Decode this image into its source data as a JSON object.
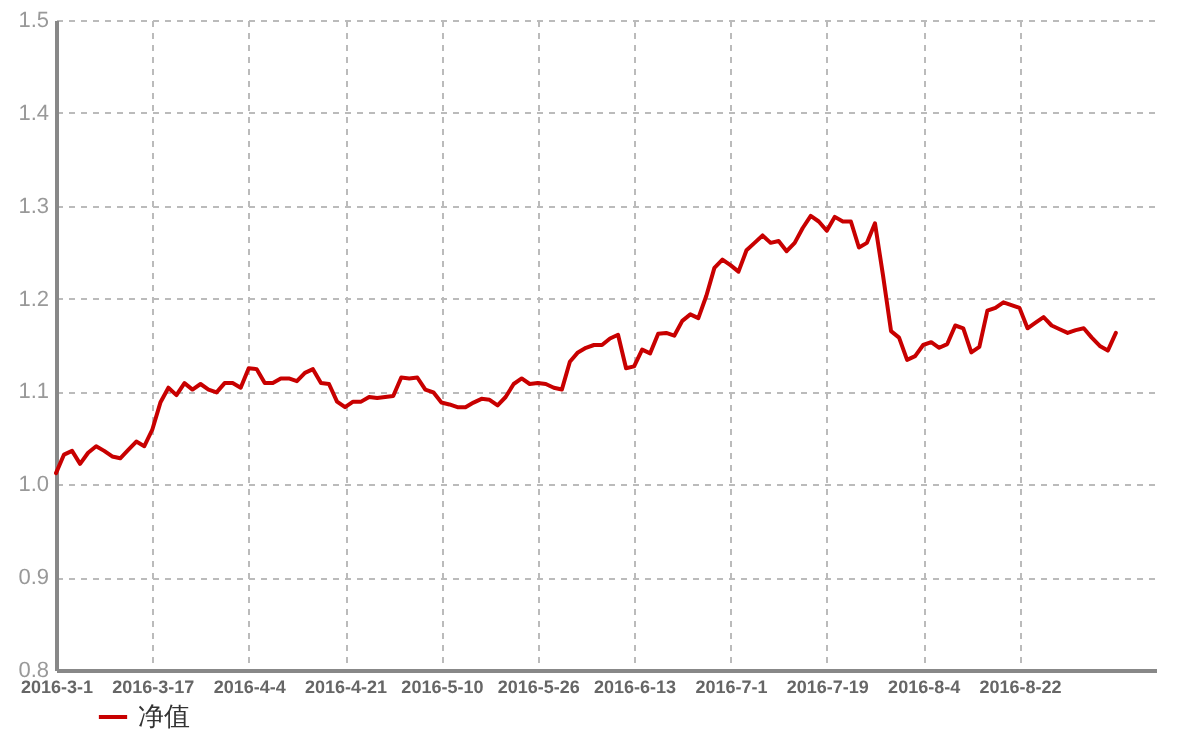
{
  "chart_data": {
    "type": "line",
    "categories": [
      "2016-3-1",
      null,
      null,
      null,
      null,
      null,
      null,
      null,
      null,
      null,
      null,
      null,
      "2016-3-17",
      null,
      null,
      null,
      null,
      null,
      null,
      null,
      null,
      null,
      null,
      null,
      "2016-4-4",
      null,
      null,
      null,
      null,
      null,
      null,
      null,
      null,
      null,
      null,
      null,
      "2016-4-21",
      null,
      null,
      null,
      null,
      null,
      null,
      null,
      null,
      null,
      null,
      null,
      "2016-5-10",
      null,
      null,
      null,
      null,
      null,
      null,
      null,
      null,
      null,
      null,
      null,
      "2016-5-26",
      null,
      null,
      null,
      null,
      null,
      null,
      null,
      null,
      null,
      null,
      null,
      "2016-6-13",
      null,
      null,
      null,
      null,
      null,
      null,
      null,
      null,
      null,
      null,
      null,
      "2016-7-1",
      null,
      null,
      null,
      null,
      null,
      null,
      null,
      null,
      null,
      null,
      null,
      "2016-7-19",
      null,
      null,
      null,
      null,
      null,
      null,
      null,
      null,
      null,
      null,
      null,
      "2016-8-4",
      null,
      null,
      null,
      null,
      null,
      null,
      null,
      null,
      null,
      null,
      null,
      "2016-8-22",
      null,
      null,
      null,
      null,
      null,
      null,
      null,
      null,
      null,
      null,
      null,
      null,
      null,
      null,
      null,
      null,
      null
    ],
    "series": [
      {
        "name": "净值",
        "color": "#c80000",
        "values": [
          1.012,
          1.032,
          1.036,
          1.022,
          1.034,
          1.041,
          1.036,
          1.03,
          1.028,
          1.037,
          1.046,
          1.041,
          1.059,
          1.088,
          1.104,
          1.096,
          1.109,
          1.102,
          1.108,
          1.102,
          1.099,
          1.109,
          1.109,
          1.104,
          1.125,
          1.124,
          1.109,
          1.109,
          1.114,
          1.114,
          1.111,
          1.12,
          1.124,
          1.109,
          1.108,
          1.089,
          1.083,
          1.089,
          1.089,
          1.094,
          1.093,
          1.094,
          1.095,
          1.115,
          1.114,
          1.115,
          1.102,
          1.099,
          1.088,
          1.086,
          1.083,
          1.083,
          1.088,
          1.092,
          1.091,
          1.085,
          1.094,
          1.108,
          1.114,
          1.108,
          1.109,
          1.108,
          1.104,
          1.102,
          1.132,
          1.142,
          1.147,
          1.15,
          1.15,
          1.157,
          1.161,
          1.125,
          1.127,
          1.145,
          1.141,
          1.162,
          1.163,
          1.16,
          1.176,
          1.183,
          1.179,
          1.203,
          1.233,
          1.242,
          1.236,
          1.229,
          1.252,
          1.26,
          1.268,
          1.26,
          1.262,
          1.251,
          1.26,
          1.276,
          1.289,
          1.283,
          1.273,
          1.288,
          1.283,
          1.283,
          1.255,
          1.26,
          1.281,
          1.225,
          1.165,
          1.158,
          1.134,
          1.138,
          1.15,
          1.153,
          1.147,
          1.151,
          1.171,
          1.168,
          1.142,
          1.148,
          1.187,
          1.19,
          1.196,
          1.193,
          1.19,
          1.168,
          1.174,
          1.18,
          1.171,
          1.167,
          1.163,
          1.166,
          1.168,
          1.158,
          1.149,
          1.144,
          1.163,
          null,
          null,
          null,
          null,
          null
        ]
      }
    ],
    "ylim": [
      0.8,
      1.5
    ],
    "yticks": [
      0.8,
      0.9,
      {
        "value": 1,
        "label": "1.0"
      },
      1.1,
      1.2,
      1.3,
      1.4,
      1.5
    ],
    "grid": true,
    "legend": "bottom left",
    "marker": "none",
    "line_style": "solid"
  }
}
